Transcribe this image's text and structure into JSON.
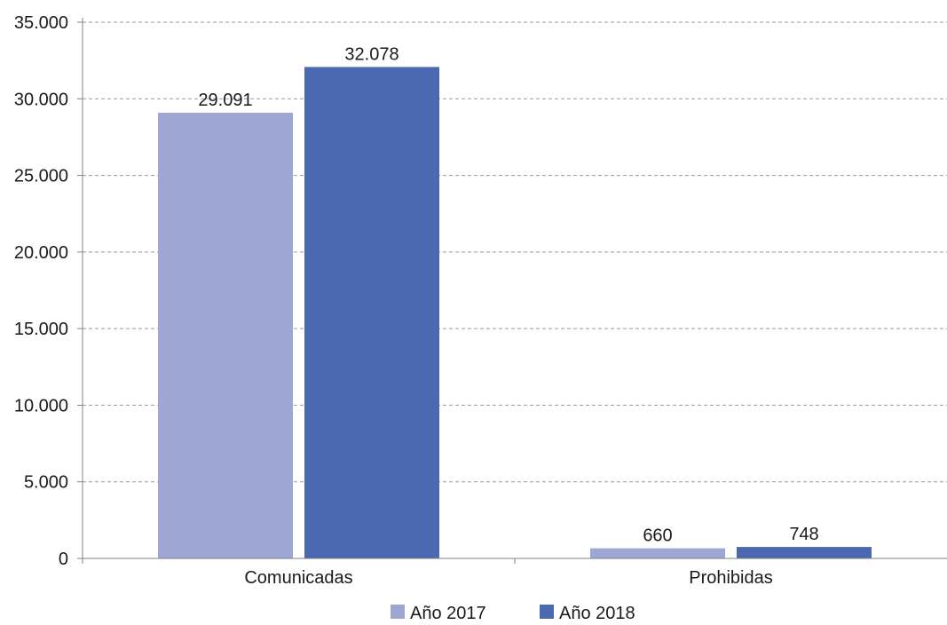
{
  "chart_data": {
    "type": "bar",
    "categories": [
      "Comunicadas",
      "Prohibidas"
    ],
    "series": [
      {
        "name": "Año 2017",
        "values": [
          29091,
          660
        ],
        "labels": [
          "29.091",
          "660"
        ]
      },
      {
        "name": "Año 2018",
        "values": [
          32078,
          748
        ],
        "labels": [
          "32.078",
          "748"
        ]
      }
    ],
    "colors": [
      "#9ea6d4",
      "#4a69b0"
    ],
    "ylim": [
      0,
      35000
    ],
    "yticks": [
      0,
      5000,
      10000,
      15000,
      20000,
      25000,
      30000,
      35000
    ],
    "ytick_labels": [
      "0",
      "5.000",
      "10.000",
      "15.000",
      "20.000",
      "25.000",
      "30.000",
      "35.000"
    ],
    "grid": true,
    "legend_position": "bottom",
    "title": "",
    "xlabel": "",
    "ylabel": ""
  }
}
